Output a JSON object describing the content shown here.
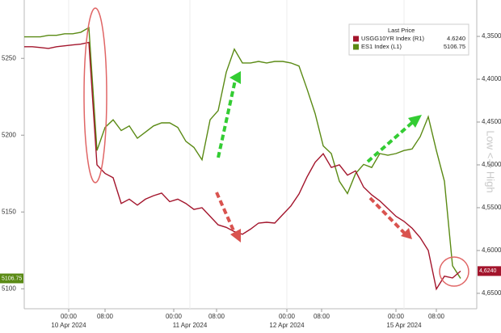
{
  "chart_data": {
    "type": "line",
    "series": [
      {
        "name": "ES1 Index  (L1)",
        "color": "#5a8a14",
        "axis": "y",
        "last_value_label": "5106.75",
        "tag_label": "5106.75",
        "values": [
          5264,
          5264,
          5264,
          5265,
          5265,
          5266,
          5266,
          5267,
          5270,
          5190,
          5205,
          5210,
          5203,
          5206,
          5198,
          5202,
          5206,
          5208,
          5208,
          5205,
          5196,
          5192,
          5184,
          5210,
          5216,
          5241,
          5256,
          5247,
          5247,
          5248,
          5247,
          5248,
          5248,
          5247,
          5245,
          5230,
          5214,
          5193,
          5188,
          5170,
          5162,
          5175,
          5181,
          5179,
          5188,
          5187,
          5188,
          5190,
          5191,
          5199,
          5212,
          5190,
          5170,
          5115,
          5106.75
        ]
      },
      {
        "name": "USGG10YR Index  (R1)",
        "color": "#a3152c",
        "axis": "y2",
        "last_value_label": "4.6240",
        "tag_label": "4,6240",
        "values": [
          4.362,
          4.362,
          4.363,
          4.364,
          4.362,
          4.361,
          4.36,
          4.359,
          4.357,
          4.5,
          4.51,
          4.515,
          4.545,
          4.54,
          4.547,
          4.54,
          4.536,
          4.533,
          4.543,
          4.54,
          4.545,
          4.552,
          4.55,
          4.56,
          4.57,
          4.573,
          4.578,
          4.581,
          4.575,
          4.568,
          4.567,
          4.568,
          4.558,
          4.548,
          4.534,
          4.514,
          4.497,
          4.487,
          4.503,
          4.5,
          4.512,
          4.507,
          4.526,
          4.535,
          4.542,
          4.551,
          4.56,
          4.566,
          4.574,
          4.585,
          4.6,
          4.645,
          4.63,
          4.632,
          4.624
        ]
      }
    ],
    "legend_title": "Last Price",
    "ylim": [
      5087,
      5288
    ],
    "yticks": [
      5100,
      5150,
      5200,
      5250
    ],
    "y2lim": [
      4.3075,
      4.668
    ],
    "y2_inverted": true,
    "y2ticks": [
      {
        "value": 4.35,
        "label": "4,3500"
      },
      {
        "value": 4.4,
        "label": "4,4000"
      },
      {
        "value": 4.45,
        "label": "4,4500"
      },
      {
        "value": 4.5,
        "label": "4,5000"
      },
      {
        "value": 4.55,
        "label": "4,5500"
      },
      {
        "value": 4.6,
        "label": "4,6000"
      },
      {
        "value": 4.65,
        "label": "4,6500"
      }
    ],
    "xtick_labels": [
      "00:00",
      "08:00",
      "00:00",
      "08:00",
      "00:00",
      "08:00",
      "00:00",
      "08:00"
    ],
    "date_labels": [
      "10 Apr 2024",
      "11 Apr 2024",
      "12 Apr 2024",
      "15 Apr 2024"
    ],
    "annotation": "Low <-> High"
  }
}
